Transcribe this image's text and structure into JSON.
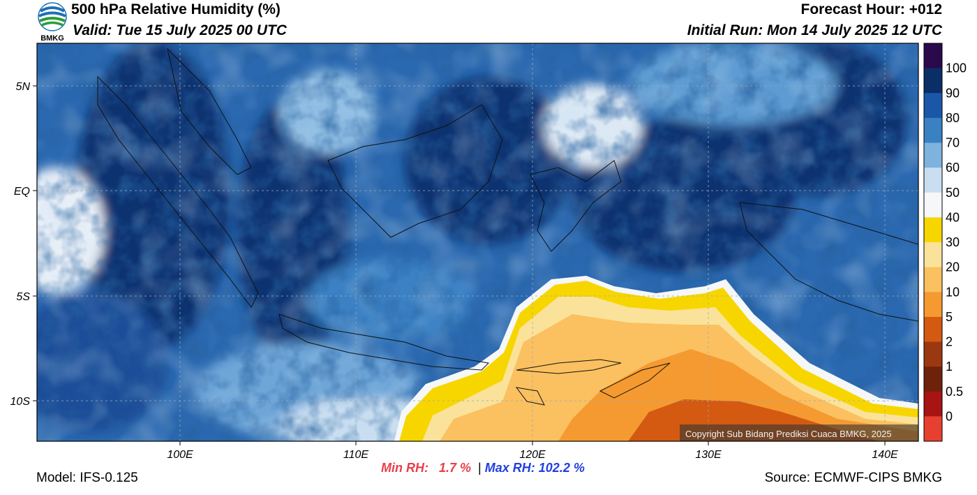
{
  "header": {
    "title": "500 hPa Relative Humidity (%)",
    "valid": "Valid: Tue 15 July 2025 00 UTC",
    "forecast_hour": "Forecast Hour: +012",
    "initial_run": "Initial Run: Mon 14 July 2025 12 UTC"
  },
  "logo": {
    "text": "BMKG",
    "colors": [
      "#1f6fb5",
      "#2a9d3c"
    ]
  },
  "map": {
    "x_ticks": [
      "100E",
      "110E",
      "120E",
      "130E",
      "140E"
    ],
    "y_ticks": [
      "5N",
      "EQ",
      "5S",
      "10S"
    ],
    "copyright": "Copyright Sub Bidang Prediksi Cuaca BMKG, 2025"
  },
  "colorbar": {
    "labels": [
      "100",
      "90",
      "80",
      "70",
      "60",
      "50",
      "40",
      "30",
      "20",
      "10",
      "5",
      "2",
      "1",
      "0.5",
      "0"
    ],
    "colors": [
      "#2a0a4a",
      "#0a2e66",
      "#1a57a8",
      "#3a81c4",
      "#7db3dd",
      "#c9def0",
      "#f6f7f8",
      "#f7d600",
      "#fbe29a",
      "#fbc060",
      "#f59a30",
      "#d35a10",
      "#9c3810",
      "#6e220c",
      "#a81414",
      "#e84030"
    ]
  },
  "stats": {
    "min_label": "Min RH:",
    "min_value": "1.7 %",
    "separator": "|",
    "max_label": "Max RH:",
    "max_value": "102.2 %"
  },
  "footer": {
    "model": "Model: IFS-0.125",
    "source": "Source: ECMWF-CIPS BMKG"
  }
}
